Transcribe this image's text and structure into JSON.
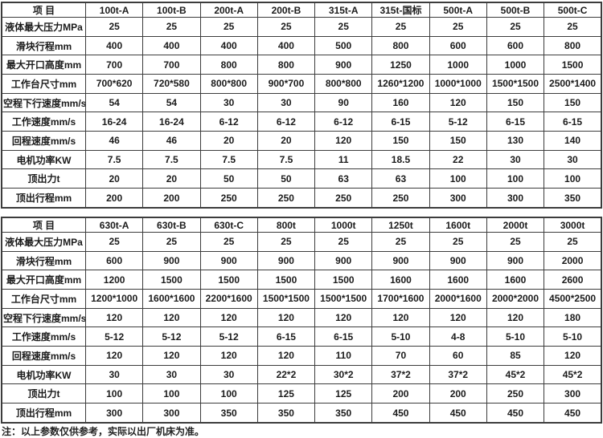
{
  "note": "注：以上参数仅供参考，实际以出厂机床为准。",
  "colors": {
    "background": "#ffffff",
    "border": "#3c3c3c",
    "text": "#1b1b1b"
  },
  "tables": [
    {
      "name": "small-tonnage-specs",
      "header": [
        "项 目",
        "100t-A",
        "100t-B",
        "200t-A",
        "200t-B",
        "315t-A",
        "315t-国标",
        "500t-A",
        "500t-B",
        "500t-C"
      ],
      "rows": [
        {
          "label": "液体最大压力MPa",
          "values": [
            "25",
            "25",
            "25",
            "25",
            "25",
            "25",
            "25",
            "25",
            "25"
          ]
        },
        {
          "label": "滑块行程mm",
          "values": [
            "400",
            "400",
            "400",
            "400",
            "500",
            "800",
            "600",
            "600",
            "800"
          ]
        },
        {
          "label": "最大开口高度mm",
          "values": [
            "700",
            "700",
            "800",
            "800",
            "900",
            "1250",
            "1000",
            "1000",
            "1500"
          ]
        },
        {
          "label": "工作台尺寸mm",
          "values": [
            "700*620",
            "720*580",
            "800*800",
            "900*700",
            "800*800",
            "1260*1200",
            "1000*1000",
            "1500*1500",
            "2500*1400"
          ]
        },
        {
          "label": "空程下行速度mm/s",
          "values": [
            "54",
            "54",
            "30",
            "30",
            "90",
            "160",
            "120",
            "150",
            "150"
          ]
        },
        {
          "label": "工作速度mm/s",
          "values": [
            "16-24",
            "16-24",
            "6-12",
            "6-12",
            "6-12",
            "6-15",
            "5-12",
            "6-15",
            "6-15"
          ]
        },
        {
          "label": "回程速度mm/s",
          "values": [
            "46",
            "46",
            "20",
            "20",
            "120",
            "150",
            "150",
            "130",
            "140"
          ]
        },
        {
          "label": "电机功率KW",
          "values": [
            "7.5",
            "7.5",
            "7.5",
            "7.5",
            "11",
            "18.5",
            "22",
            "30",
            "30"
          ]
        },
        {
          "label": "顶出力t",
          "values": [
            "20",
            "20",
            "50",
            "50",
            "63",
            "63",
            "100",
            "100",
            "100"
          ]
        },
        {
          "label": "顶出行程mm",
          "values": [
            "200",
            "200",
            "250",
            "250",
            "250",
            "250",
            "300",
            "300",
            "350"
          ]
        }
      ]
    },
    {
      "name": "large-tonnage-specs",
      "header": [
        "项 目",
        "630t-A",
        "630t-B",
        "630t-C",
        "800t",
        "1000t",
        "1250t",
        "1600t",
        "2000t",
        "3000t"
      ],
      "rows": [
        {
          "label": "液体最大压力MPa",
          "values": [
            "25",
            "25",
            "25",
            "25",
            "25",
            "25",
            "25",
            "25",
            "25"
          ]
        },
        {
          "label": "滑块行程mm",
          "values": [
            "600",
            "900",
            "900",
            "900",
            "900",
            "900",
            "900",
            "900",
            "2000"
          ]
        },
        {
          "label": "最大开口高度mm",
          "values": [
            "1200",
            "1500",
            "1500",
            "1500",
            "1500",
            "1600",
            "1600",
            "1600",
            "2600"
          ]
        },
        {
          "label": "工作台尺寸mm",
          "values": [
            "1200*1000",
            "1600*1600",
            "2200*1600",
            "1500*1500",
            "1500*1500",
            "1700*1600",
            "2000*1600",
            "2000*2000",
            "4500*2500"
          ]
        },
        {
          "label": "空程下行速度mm/s",
          "values": [
            "120",
            "120",
            "120",
            "120",
            "120",
            "120",
            "120",
            "120",
            "180"
          ]
        },
        {
          "label": "工作速度mm/s",
          "values": [
            "5-12",
            "5-12",
            "5-12",
            "6-15",
            "6-15",
            "5-10",
            "4-8",
            "5-10",
            "5-10"
          ]
        },
        {
          "label": "回程速度mm/s",
          "values": [
            "120",
            "120",
            "120",
            "120",
            "110",
            "70",
            "60",
            "85",
            "120"
          ]
        },
        {
          "label": "电机功率KW",
          "values": [
            "30",
            "30",
            "30",
            "22*2",
            "30*2",
            "37*2",
            "37*2",
            "45*2",
            "45*2"
          ]
        },
        {
          "label": "顶出力t",
          "values": [
            "100",
            "100",
            "100",
            "125",
            "125",
            "200",
            "200",
            "250",
            "300"
          ]
        },
        {
          "label": "顶出行程mm",
          "values": [
            "300",
            "300",
            "350",
            "350",
            "350",
            "450",
            "450",
            "450",
            "450"
          ]
        }
      ]
    }
  ]
}
